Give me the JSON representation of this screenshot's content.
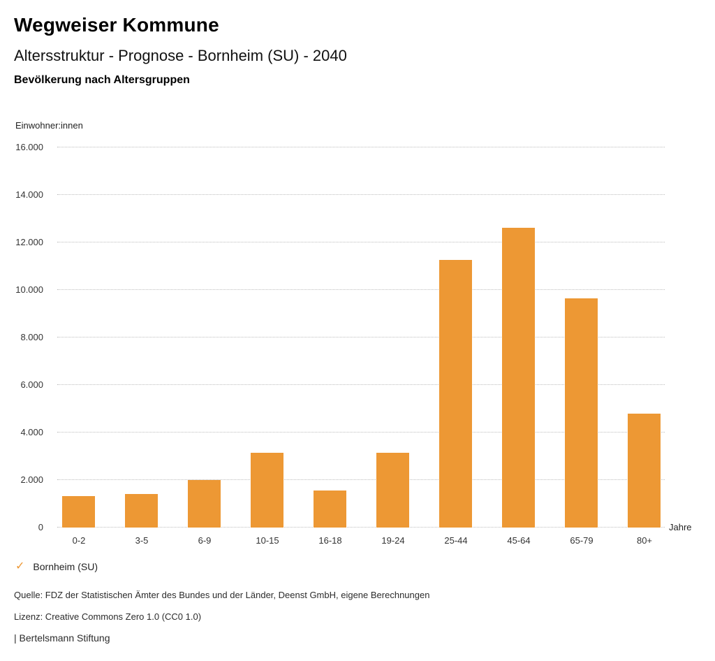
{
  "header": {
    "title": "Wegweiser Kommune",
    "subtitle": "Altersstruktur - Prognose - Bornheim (SU) - 2040",
    "chart_heading": "Bevölkerung nach Altersgruppen"
  },
  "chart_data": {
    "type": "bar",
    "title": "Bevölkerung nach Altersgruppen",
    "series_name": "Bornheim (SU)",
    "categories": [
      "0-2",
      "3-5",
      "6-9",
      "10-15",
      "16-18",
      "19-24",
      "25-44",
      "45-64",
      "65-79",
      "80+"
    ],
    "values": [
      1310,
      1400,
      2010,
      3160,
      1570,
      3150,
      11250,
      12610,
      9640,
      4780
    ],
    "xlabel": "Jahre",
    "ylabel": "Einwohner:innen",
    "ylim": [
      0,
      16000
    ],
    "ytick_step": 2000,
    "ytick_labels": [
      "0",
      "2.000",
      "4.000",
      "6.000",
      "8.000",
      "10.000",
      "12.000",
      "14.000",
      "16.000"
    ],
    "grid": "horizontal-dotted",
    "legend_position": "bottom-left",
    "bar_color": "#ED9834"
  },
  "legend": {
    "items": [
      {
        "icon": "check-icon",
        "glyph": "✓",
        "color": "#ED9834",
        "label": "Bornheim (SU)"
      }
    ]
  },
  "footer": {
    "source": "Quelle: FDZ der Statistischen Ämter des Bundes und der Länder, Deenst GmbH, eigene Berechnungen",
    "license": "Lizenz: Creative Commons Zero 1.0 (CC0 1.0)",
    "attribution": "| Bertelsmann Stiftung"
  },
  "colors": {
    "bar": "#ED9834",
    "grid": "#bdbdbd",
    "text": "#1a1a1a"
  }
}
